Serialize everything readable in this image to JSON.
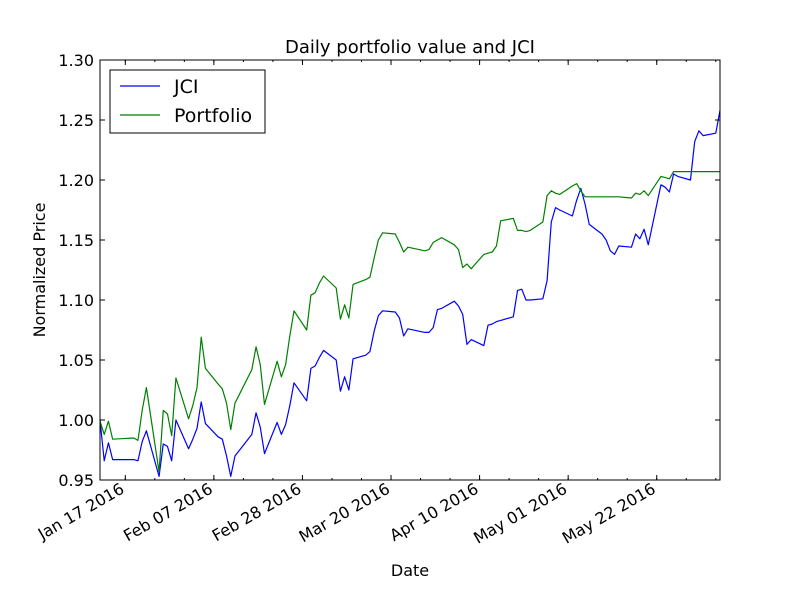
{
  "chart_data": {
    "type": "line",
    "title": "Daily portfolio value and JCI",
    "xlabel": "Date",
    "ylabel": "Normalized Price",
    "ylim": [
      0.95,
      1.3
    ],
    "yticks": [
      "0.95",
      "1.00",
      "1.05",
      "1.10",
      "1.15",
      "1.20",
      "1.25",
      "1.30"
    ],
    "xlim": [
      "2016-01-11",
      "2016-06-06"
    ],
    "xticks": [
      {
        "date": "2016-01-17",
        "label": "Jan 17 2016"
      },
      {
        "date": "2016-02-07",
        "label": "Feb 07 2016"
      },
      {
        "date": "2016-02-28",
        "label": "Feb 28 2016"
      },
      {
        "date": "2016-03-20",
        "label": "Mar 20 2016"
      },
      {
        "date": "2016-04-10",
        "label": "Apr 10 2016"
      },
      {
        "date": "2016-05-01",
        "label": "May 01 2016"
      },
      {
        "date": "2016-05-22",
        "label": "May 22 2016"
      }
    ],
    "grid": false,
    "legend_position": "top-left",
    "series": [
      {
        "name": "JCI",
        "color": "#0000ff",
        "points": [
          [
            "2016-01-11",
            1.0
          ],
          [
            "2016-01-12",
            0.966
          ],
          [
            "2016-01-13",
            0.981
          ],
          [
            "2016-01-14",
            0.967
          ],
          [
            "2016-01-19",
            0.967
          ],
          [
            "2016-01-20",
            0.966
          ],
          [
            "2016-01-21",
            0.982
          ],
          [
            "2016-01-22",
            0.991
          ],
          [
            "2016-01-25",
            0.953
          ],
          [
            "2016-01-26",
            0.98
          ],
          [
            "2016-01-27",
            0.978
          ],
          [
            "2016-01-28",
            0.966
          ],
          [
            "2016-01-29",
            1.0
          ],
          [
            "2016-02-01",
            0.976
          ],
          [
            "2016-02-02",
            0.984
          ],
          [
            "2016-02-03",
            0.993
          ],
          [
            "2016-02-04",
            1.015
          ],
          [
            "2016-02-05",
            0.997
          ],
          [
            "2016-02-08",
            0.986
          ],
          [
            "2016-02-09",
            0.984
          ],
          [
            "2016-02-10",
            0.97
          ],
          [
            "2016-02-11",
            0.953
          ],
          [
            "2016-02-12",
            0.97
          ],
          [
            "2016-02-16",
            0.988
          ],
          [
            "2016-02-17",
            1.006
          ],
          [
            "2016-02-18",
            0.994
          ],
          [
            "2016-02-19",
            0.972
          ],
          [
            "2016-02-22",
            0.998
          ],
          [
            "2016-02-23",
            0.988
          ],
          [
            "2016-02-24",
            0.996
          ],
          [
            "2016-02-25",
            1.012
          ],
          [
            "2016-02-26",
            1.031
          ],
          [
            "2016-02-29",
            1.016
          ],
          [
            "2016-03-01",
            1.043
          ],
          [
            "2016-03-02",
            1.045
          ],
          [
            "2016-03-03",
            1.052
          ],
          [
            "2016-03-04",
            1.058
          ],
          [
            "2016-03-07",
            1.05
          ],
          [
            "2016-03-08",
            1.024
          ],
          [
            "2016-03-09",
            1.036
          ],
          [
            "2016-03-10",
            1.025
          ],
          [
            "2016-03-11",
            1.051
          ],
          [
            "2016-03-14",
            1.054
          ],
          [
            "2016-03-15",
            1.057
          ],
          [
            "2016-03-16",
            1.074
          ],
          [
            "2016-03-17",
            1.087
          ],
          [
            "2016-03-18",
            1.091
          ],
          [
            "2016-03-21",
            1.09
          ],
          [
            "2016-03-22",
            1.085
          ],
          [
            "2016-03-23",
            1.07
          ],
          [
            "2016-03-24",
            1.076
          ],
          [
            "2016-03-28",
            1.073
          ],
          [
            "2016-03-29",
            1.073
          ],
          [
            "2016-03-30",
            1.077
          ],
          [
            "2016-03-31",
            1.092
          ],
          [
            "2016-04-01",
            1.093
          ],
          [
            "2016-04-04",
            1.099
          ],
          [
            "2016-04-05",
            1.095
          ],
          [
            "2016-04-06",
            1.088
          ],
          [
            "2016-04-07",
            1.063
          ],
          [
            "2016-04-08",
            1.067
          ],
          [
            "2016-04-11",
            1.062
          ],
          [
            "2016-04-12",
            1.079
          ],
          [
            "2016-04-13",
            1.08
          ],
          [
            "2016-04-14",
            1.082
          ],
          [
            "2016-04-15",
            1.083
          ],
          [
            "2016-04-18",
            1.086
          ],
          [
            "2016-04-19",
            1.108
          ],
          [
            "2016-04-20",
            1.109
          ],
          [
            "2016-04-21",
            1.1
          ],
          [
            "2016-04-22",
            1.1
          ],
          [
            "2016-04-25",
            1.101
          ],
          [
            "2016-04-26",
            1.116
          ],
          [
            "2016-04-27",
            1.165
          ],
          [
            "2016-04-28",
            1.177
          ],
          [
            "2016-04-29",
            1.175
          ],
          [
            "2016-05-02",
            1.17
          ],
          [
            "2016-05-03",
            1.183
          ],
          [
            "2016-05-04",
            1.193
          ],
          [
            "2016-05-05",
            1.18
          ],
          [
            "2016-05-06",
            1.163
          ],
          [
            "2016-05-09",
            1.155
          ],
          [
            "2016-05-10",
            1.15
          ],
          [
            "2016-05-11",
            1.141
          ],
          [
            "2016-05-12",
            1.138
          ],
          [
            "2016-05-13",
            1.145
          ],
          [
            "2016-05-16",
            1.144
          ],
          [
            "2016-05-17",
            1.155
          ],
          [
            "2016-05-18",
            1.151
          ],
          [
            "2016-05-19",
            1.159
          ],
          [
            "2016-05-20",
            1.146
          ],
          [
            "2016-05-23",
            1.196
          ],
          [
            "2016-05-24",
            1.194
          ],
          [
            "2016-05-25",
            1.19
          ],
          [
            "2016-05-26",
            1.205
          ],
          [
            "2016-05-27",
            1.203
          ],
          [
            "2016-05-30",
            1.2
          ],
          [
            "2016-05-31",
            1.232
          ],
          [
            "2016-06-01",
            1.241
          ],
          [
            "2016-06-02",
            1.237
          ],
          [
            "2016-06-05",
            1.239
          ],
          [
            "2016-06-06",
            1.258
          ]
        ]
      },
      {
        "name": "Portfolio",
        "color": "#008000",
        "points": [
          [
            "2016-01-11",
            0.999
          ],
          [
            "2016-01-12",
            0.988
          ],
          [
            "2016-01-13",
            0.999
          ],
          [
            "2016-01-14",
            0.984
          ],
          [
            "2016-01-19",
            0.985
          ],
          [
            "2016-01-20",
            0.983
          ],
          [
            "2016-01-21",
            1.008
          ],
          [
            "2016-01-22",
            1.027
          ],
          [
            "2016-01-25",
            0.957
          ],
          [
            "2016-01-26",
            1.008
          ],
          [
            "2016-01-27",
            1.005
          ],
          [
            "2016-01-28",
            0.987
          ],
          [
            "2016-01-29",
            1.035
          ],
          [
            "2016-02-01",
            1.001
          ],
          [
            "2016-02-02",
            1.012
          ],
          [
            "2016-02-03",
            1.027
          ],
          [
            "2016-02-04",
            1.069
          ],
          [
            "2016-02-05",
            1.043
          ],
          [
            "2016-02-08",
            1.03
          ],
          [
            "2016-02-09",
            1.026
          ],
          [
            "2016-02-10",
            1.014
          ],
          [
            "2016-02-11",
            0.992
          ],
          [
            "2016-02-12",
            1.014
          ],
          [
            "2016-02-16",
            1.042
          ],
          [
            "2016-02-17",
            1.061
          ],
          [
            "2016-02-18",
            1.046
          ],
          [
            "2016-02-19",
            1.013
          ],
          [
            "2016-02-22",
            1.049
          ],
          [
            "2016-02-23",
            1.036
          ],
          [
            "2016-02-24",
            1.046
          ],
          [
            "2016-02-25",
            1.07
          ],
          [
            "2016-02-26",
            1.091
          ],
          [
            "2016-02-29",
            1.075
          ],
          [
            "2016-03-01",
            1.104
          ],
          [
            "2016-03-02",
            1.106
          ],
          [
            "2016-03-03",
            1.114
          ],
          [
            "2016-03-04",
            1.12
          ],
          [
            "2016-03-07",
            1.11
          ],
          [
            "2016-03-08",
            1.084
          ],
          [
            "2016-03-09",
            1.096
          ],
          [
            "2016-03-10",
            1.085
          ],
          [
            "2016-03-11",
            1.113
          ],
          [
            "2016-03-14",
            1.117
          ],
          [
            "2016-03-15",
            1.119
          ],
          [
            "2016-03-16",
            1.135
          ],
          [
            "2016-03-17",
            1.15
          ],
          [
            "2016-03-18",
            1.156
          ],
          [
            "2016-03-21",
            1.155
          ],
          [
            "2016-03-22",
            1.148
          ],
          [
            "2016-03-23",
            1.14
          ],
          [
            "2016-03-24",
            1.144
          ],
          [
            "2016-03-28",
            1.141
          ],
          [
            "2016-03-29",
            1.142
          ],
          [
            "2016-03-30",
            1.148
          ],
          [
            "2016-03-31",
            1.15
          ],
          [
            "2016-04-01",
            1.152
          ],
          [
            "2016-04-04",
            1.146
          ],
          [
            "2016-04-05",
            1.142
          ],
          [
            "2016-04-06",
            1.127
          ],
          [
            "2016-04-07",
            1.13
          ],
          [
            "2016-04-08",
            1.126
          ],
          [
            "2016-04-11",
            1.138
          ],
          [
            "2016-04-12",
            1.139
          ],
          [
            "2016-04-13",
            1.14
          ],
          [
            "2016-04-14",
            1.145
          ],
          [
            "2016-04-15",
            1.166
          ],
          [
            "2016-04-18",
            1.168
          ],
          [
            "2016-04-19",
            1.158
          ],
          [
            "2016-04-20",
            1.158
          ],
          [
            "2016-04-21",
            1.157
          ],
          [
            "2016-04-22",
            1.158
          ],
          [
            "2016-04-25",
            1.165
          ],
          [
            "2016-04-26",
            1.187
          ],
          [
            "2016-04-27",
            1.191
          ],
          [
            "2016-04-28",
            1.189
          ],
          [
            "2016-04-29",
            1.188
          ],
          [
            "2016-05-02",
            1.195
          ],
          [
            "2016-05-03",
            1.197
          ],
          [
            "2016-05-04",
            1.191
          ],
          [
            "2016-05-05",
            1.186
          ],
          [
            "2016-05-06",
            1.186
          ],
          [
            "2016-05-09",
            1.186
          ],
          [
            "2016-05-10",
            1.186
          ],
          [
            "2016-05-11",
            1.186
          ],
          [
            "2016-05-12",
            1.186
          ],
          [
            "2016-05-13",
            1.186
          ],
          [
            "2016-05-16",
            1.185
          ],
          [
            "2016-05-17",
            1.189
          ],
          [
            "2016-05-18",
            1.188
          ],
          [
            "2016-05-19",
            1.191
          ],
          [
            "2016-05-20",
            1.187
          ],
          [
            "2016-05-23",
            1.203
          ],
          [
            "2016-05-24",
            1.202
          ],
          [
            "2016-05-25",
            1.201
          ],
          [
            "2016-05-26",
            1.207
          ],
          [
            "2016-05-27",
            1.207
          ],
          [
            "2016-05-30",
            1.207
          ],
          [
            "2016-05-31",
            1.207
          ],
          [
            "2016-06-01",
            1.207
          ],
          [
            "2016-06-02",
            1.207
          ],
          [
            "2016-06-05",
            1.207
          ],
          [
            "2016-06-06",
            1.207
          ]
        ]
      }
    ]
  }
}
